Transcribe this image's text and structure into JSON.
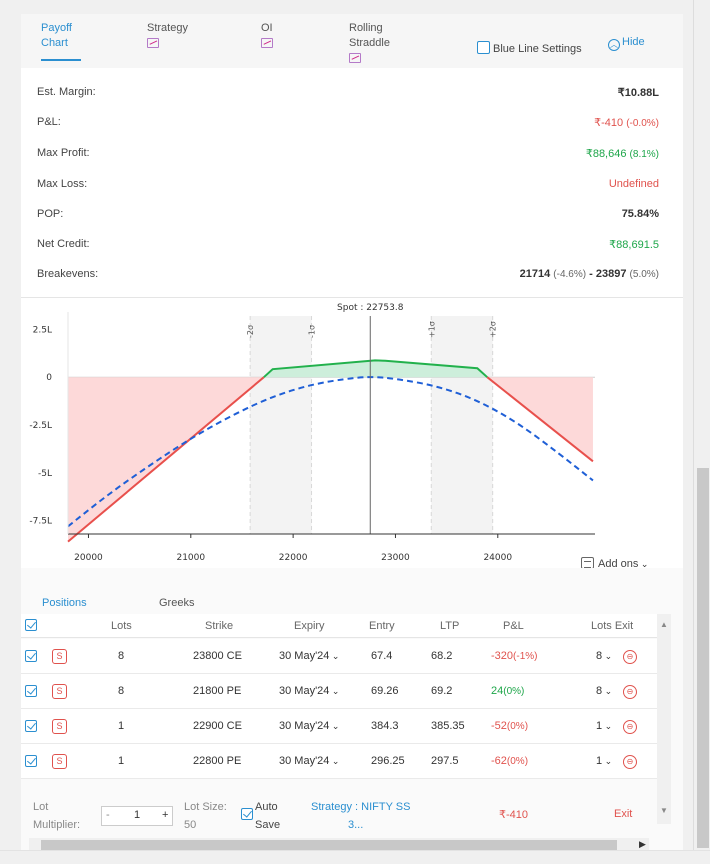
{
  "tabs": [
    {
      "label": "Payoff Chart",
      "active": true
    },
    {
      "label": "Strategy",
      "active": false
    },
    {
      "label": "OI",
      "active": false
    },
    {
      "label": "Rolling Straddle",
      "active": false
    }
  ],
  "tab_labels": {
    "payoff_1": "Payoff",
    "payoff_2": "Chart",
    "strategy": "Strategy",
    "oi": "OI",
    "rolling_1": "Rolling",
    "rolling_2": "Straddle"
  },
  "blue_line_settings": "Blue Line Settings",
  "hide_label": "Hide",
  "stats": {
    "est_margin": {
      "label": "Est. Margin:",
      "value": "₹10.88L"
    },
    "pnl": {
      "label": "P&L:",
      "value": "₹-410",
      "pct": "(-0.0%)"
    },
    "max_profit": {
      "label": "Max Profit:",
      "value": "₹88,646",
      "pct": "(8.1%)"
    },
    "max_loss": {
      "label": "Max Loss:",
      "value": "Undefined"
    },
    "pop": {
      "label": "POP:",
      "value": "75.84%"
    },
    "net_credit": {
      "label": "Net Credit:",
      "value": "₹88,691.5"
    },
    "breakevens": {
      "label": "Breakevens:",
      "low": "21714",
      "low_pct": "(-4.6%)",
      "sep": "-",
      "high": "23897",
      "high_pct": "(5.0%)"
    }
  },
  "chart_data": {
    "type": "line",
    "spot_label": "Spot : 22753.8",
    "spot": 22753.8,
    "xlim": [
      19800,
      24950
    ],
    "ylim": [
      -8.2,
      3.2
    ],
    "x_ticks": [
      20000,
      21000,
      22000,
      23000,
      24000
    ],
    "y_ticks": [
      {
        "value": 2.5,
        "label": "2.5L"
      },
      {
        "value": 0,
        "label": "0"
      },
      {
        "value": -2.5,
        "label": "-2.5L"
      },
      {
        "value": -5,
        "label": "-5L"
      },
      {
        "value": -7.5,
        "label": "-7.5L"
      }
    ],
    "sigma_lines": [
      {
        "label": "-2σ",
        "x": 21580
      },
      {
        "label": "-1σ",
        "x": 22180
      },
      {
        "label": "+1σ",
        "x": 23350
      },
      {
        "label": "+2σ",
        "x": 23950
      }
    ],
    "series": [
      {
        "kind": "expiry_payoff",
        "color": "#e8504c",
        "profit_color": "#22b14c",
        "x": [
          19800,
          21714,
          21800,
          22800,
          22900,
          23800,
          23897,
          24930
        ],
        "y": [
          -8.6,
          0,
          0.42,
          0.88,
          0.86,
          0.47,
          0,
          -4.4
        ]
      },
      {
        "kind": "target_day",
        "color": "#1f5fd6",
        "dashed": true,
        "x": [
          19800,
          20200,
          20600,
          21000,
          21400,
          21800,
          22200,
          22600,
          22800,
          23000,
          23400,
          23800,
          24200,
          24600,
          24930
        ],
        "y": [
          -7.8,
          -6.1,
          -4.6,
          -3.2,
          -2.0,
          -1.0,
          -0.35,
          -0.02,
          0.02,
          -0.08,
          -0.45,
          -1.2,
          -2.4,
          -4.0,
          -5.4
        ]
      }
    ]
  },
  "addons_label": "Add ons",
  "positions_tabs": {
    "positions": "Positions",
    "greeks": "Greeks"
  },
  "table": {
    "headers": {
      "lots": "Lots",
      "strike": "Strike",
      "expiry": "Expiry",
      "entry": "Entry",
      "ltp": "LTP",
      "pnl": "P&L",
      "lots_exit": "Lots Exit"
    },
    "rows": [
      {
        "badge": "S",
        "lots": "8",
        "strike": "23800 CE",
        "expiry": "30 May'24",
        "entry": "67.4",
        "ltp": "68.2",
        "pnl": "-320",
        "pnl_pct": "(-1%)",
        "pnl_type": "red",
        "exit_lots": "8"
      },
      {
        "badge": "S",
        "lots": "8",
        "strike": "21800 PE",
        "expiry": "30 May'24",
        "entry": "69.26",
        "ltp": "69.2",
        "pnl": "24",
        "pnl_pct": "(0%)",
        "pnl_type": "green",
        "exit_lots": "8"
      },
      {
        "badge": "S",
        "lots": "1",
        "strike": "22900 CE",
        "expiry": "30 May'24",
        "entry": "384.3",
        "ltp": "385.35",
        "pnl": "-52",
        "pnl_pct": "(0%)",
        "pnl_type": "red",
        "exit_lots": "1"
      },
      {
        "badge": "S",
        "lots": "1",
        "strike": "22800 PE",
        "expiry": "30 May'24",
        "entry": "296.25",
        "ltp": "297.5",
        "pnl": "-62",
        "pnl_pct": "(0%)",
        "pnl_type": "red",
        "exit_lots": "1"
      }
    ]
  },
  "footer": {
    "lot_multiplier_1": "Lot",
    "lot_multiplier_2": "Multiplier:",
    "stepper_minus": "-",
    "stepper_value": "1",
    "stepper_plus": "+",
    "lot_size_label": "Lot Size:",
    "lot_size_value": "50",
    "auto_save_1": "Auto",
    "auto_save_2": "Save",
    "strategy_1": "Strategy : NIFTY SS",
    "strategy_2": "3...",
    "total_pnl": "₹-410",
    "exit": "Exit"
  },
  "colors": {
    "accent": "#2b8fd0",
    "loss": "#e0524d",
    "profit": "#1ea64a"
  }
}
